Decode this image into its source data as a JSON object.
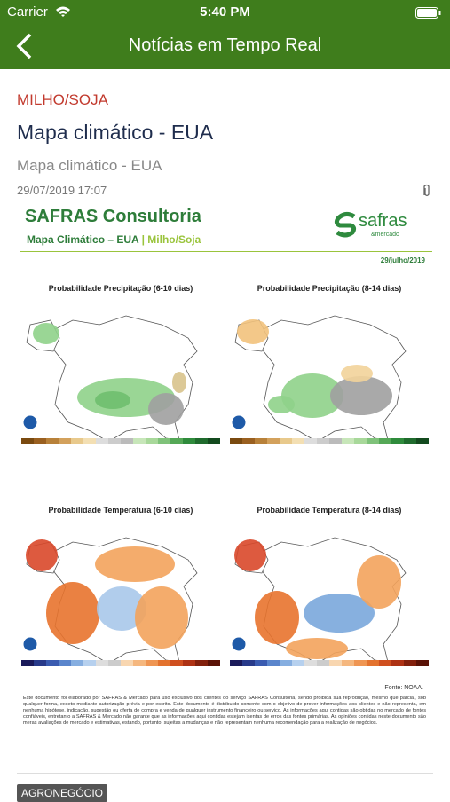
{
  "status_bar": {
    "carrier": "Carrier",
    "time": "5:40 PM"
  },
  "nav": {
    "title": "Notícias em Tempo Real"
  },
  "article": {
    "category": "MILHO/SOJA",
    "title": "Mapa climático - EUA",
    "subtitle": "Mapa climático - EUA",
    "date": "29/07/2019 17:07"
  },
  "document": {
    "brand": "SAFRAS Consultoria",
    "heading": "Mapa Climático  – EUA",
    "heading_tag": "| Milho/Soja",
    "logo": "safras",
    "logo_sub": "&mercado",
    "date": "29/julho/2019",
    "maps": [
      "Probabilidade Precipitação (6-10 dias)",
      "Probabilidade Precipitação (8-14 dias)",
      "Probabilidade Temperatura (6-10 dias)",
      "Probabilidade Temperatura (8-14 dias)"
    ],
    "source": "Fonte: NOAA.",
    "disclaimer": "Este documento foi elaborado por SAFRAS & Mercado para uso exclusivo dos clientes do serviço SAFRAS Consultoria, sendo proibida sua reprodução, mesmo que parcial, sob qualquer forma, exceto mediante autorização prévia e por escrito. Este documento é distribuído somente com o objetivo de prover informações aos clientes e não representa, em nenhuma hipótese, indicação, sugestão ou oferta de compra e venda de qualquer instrumento financeiro ou serviço. As informações aqui contidas são obtidas no mercado de fontes confiáveis, entretanto a SAFRAS & Mercado não garante que as informações aqui contidas estejam isentas de erros das fontes primárias. As opiniões contidas neste documento são meras avaliações de mercado e estimativas, estando, portanto, sujeitas a mudanças e não representam nenhuma recomendação para a realização de negócios."
  },
  "tag": "AGRONEGÓCIO"
}
